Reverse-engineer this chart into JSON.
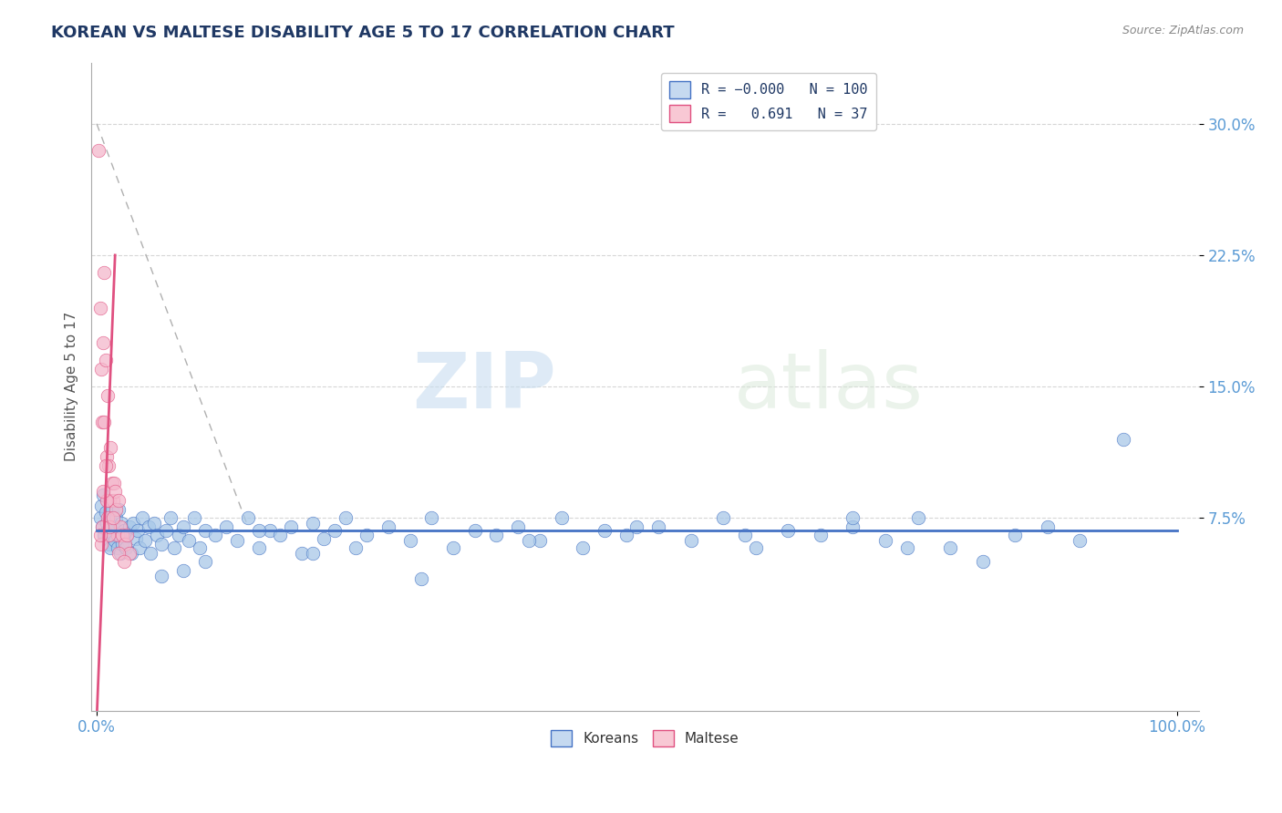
{
  "title": "KOREAN VS MALTESE DISABILITY AGE 5 TO 17 CORRELATION CHART",
  "source": "Source: ZipAtlas.com",
  "ylabel": "Disability Age 5 to 17",
  "xlim": [
    -0.005,
    1.02
  ],
  "ylim": [
    -0.035,
    0.335
  ],
  "yticks": [
    0.075,
    0.15,
    0.225,
    0.3
  ],
  "ytick_labels": [
    "7.5%",
    "15.0%",
    "22.5%",
    "30.0%"
  ],
  "xtick_left": 0.0,
  "xtick_right": 1.0,
  "xtick_left_label": "0.0%",
  "xtick_right_label": "100.0%",
  "korean_R": -0.0,
  "korean_N": 100,
  "maltese_R": 0.691,
  "maltese_N": 37,
  "blue_scatter_color": "#a8c8e8",
  "blue_line_color": "#4472c4",
  "pink_scatter_color": "#f4b8cc",
  "pink_line_color": "#e05080",
  "legend_blue_face": "#c5d9f0",
  "legend_pink_face": "#f8c8d4",
  "background_color": "#ffffff",
  "watermark_zip": "ZIP",
  "watermark_atlas": "atlas",
  "title_color": "#1f3864",
  "axis_label_color": "#555555",
  "tick_label_color": "#5b9bd5",
  "grid_color": "#cccccc",
  "title_fontsize": 13,
  "source_fontsize": 9,
  "korean_x": [
    0.003,
    0.004,
    0.005,
    0.006,
    0.007,
    0.008,
    0.009,
    0.01,
    0.011,
    0.012,
    0.013,
    0.014,
    0.015,
    0.016,
    0.017,
    0.018,
    0.019,
    0.02,
    0.021,
    0.022,
    0.023,
    0.024,
    0.025,
    0.027,
    0.028,
    0.03,
    0.032,
    0.034,
    0.036,
    0.038,
    0.04,
    0.042,
    0.045,
    0.048,
    0.05,
    0.053,
    0.056,
    0.06,
    0.064,
    0.068,
    0.072,
    0.076,
    0.08,
    0.085,
    0.09,
    0.095,
    0.1,
    0.11,
    0.12,
    0.13,
    0.14,
    0.15,
    0.16,
    0.17,
    0.18,
    0.19,
    0.2,
    0.21,
    0.22,
    0.23,
    0.24,
    0.25,
    0.27,
    0.29,
    0.31,
    0.33,
    0.35,
    0.37,
    0.39,
    0.41,
    0.43,
    0.45,
    0.47,
    0.49,
    0.52,
    0.55,
    0.58,
    0.61,
    0.64,
    0.67,
    0.7,
    0.73,
    0.76,
    0.79,
    0.82,
    0.85,
    0.88,
    0.91,
    0.7,
    0.75,
    0.6,
    0.5,
    0.4,
    0.3,
    0.2,
    0.15,
    0.1,
    0.08,
    0.06,
    0.95
  ],
  "korean_y": [
    0.075,
    0.082,
    0.07,
    0.088,
    0.065,
    0.078,
    0.072,
    0.068,
    0.06,
    0.075,
    0.058,
    0.08,
    0.065,
    0.07,
    0.062,
    0.075,
    0.058,
    0.08,
    0.065,
    0.055,
    0.072,
    0.06,
    0.068,
    0.058,
    0.065,
    0.07,
    0.055,
    0.072,
    0.063,
    0.068,
    0.058,
    0.075,
    0.062,
    0.07,
    0.055,
    0.072,
    0.065,
    0.06,
    0.068,
    0.075,
    0.058,
    0.065,
    0.07,
    0.062,
    0.075,
    0.058,
    0.068,
    0.065,
    0.07,
    0.062,
    0.075,
    0.058,
    0.068,
    0.065,
    0.07,
    0.055,
    0.072,
    0.063,
    0.068,
    0.075,
    0.058,
    0.065,
    0.07,
    0.062,
    0.075,
    0.058,
    0.068,
    0.065,
    0.07,
    0.062,
    0.075,
    0.058,
    0.068,
    0.065,
    0.07,
    0.062,
    0.075,
    0.058,
    0.068,
    0.065,
    0.07,
    0.062,
    0.075,
    0.058,
    0.05,
    0.065,
    0.07,
    0.062,
    0.075,
    0.058,
    0.065,
    0.07,
    0.062,
    0.04,
    0.055,
    0.068,
    0.05,
    0.045,
    0.042,
    0.12
  ],
  "maltese_x": [
    0.002,
    0.003,
    0.004,
    0.005,
    0.006,
    0.007,
    0.008,
    0.009,
    0.01,
    0.011,
    0.012,
    0.013,
    0.014,
    0.015,
    0.016,
    0.017,
    0.018,
    0.019,
    0.02,
    0.022,
    0.024,
    0.026,
    0.028,
    0.03,
    0.008,
    0.009,
    0.01,
    0.011,
    0.012,
    0.007,
    0.006,
    0.005,
    0.004,
    0.003,
    0.015,
    0.02,
    0.025
  ],
  "maltese_y": [
    0.285,
    0.195,
    0.16,
    0.13,
    0.175,
    0.215,
    0.165,
    0.11,
    0.145,
    0.105,
    0.085,
    0.115,
    0.095,
    0.085,
    0.095,
    0.09,
    0.08,
    0.065,
    0.085,
    0.07,
    0.065,
    0.06,
    0.065,
    0.055,
    0.105,
    0.085,
    0.075,
    0.065,
    0.07,
    0.13,
    0.09,
    0.07,
    0.06,
    0.065,
    0.075,
    0.055,
    0.05
  ]
}
